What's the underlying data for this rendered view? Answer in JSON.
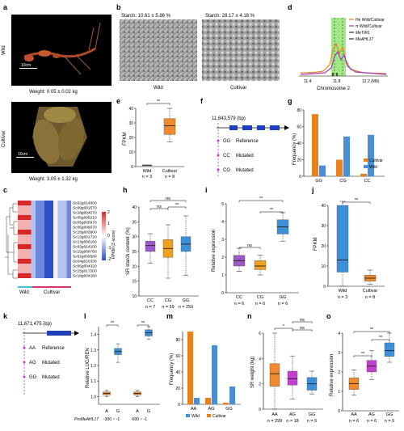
{
  "panels": {
    "a": {
      "letter": "a",
      "row_wild": "Wild",
      "row_cultivar": "Cultivar",
      "weight_wild": "Weight: 0.05 ± 0.02 kg",
      "weight_cultivar": "Weight: 3.05 ± 1.32 kg",
      "scale": "10cm"
    },
    "b": {
      "letter": "b",
      "starch_wild": "Starch: 10.61 ± 5.86 %",
      "starch_cultivar": "Starch: 28.17 ± 4.18 %",
      "label_wild": "Wild",
      "label_cultivar": "Cultivar"
    },
    "d": {
      "letter": "d",
      "legend": [
        "He Wild/Cultivar",
        "π Wild/Cultivar",
        "MeTIR1",
        "MeAHL17"
      ],
      "xticks": [
        "11.4",
        "11.8",
        "12.2 (Mb)"
      ],
      "xlabel": "Chromosome 2",
      "colors": {
        "he": "#e8821e",
        "pi": "#a43cc6",
        "shade": "#7fe05a"
      }
    },
    "e": {
      "letter": "e",
      "ylabel": "FPKM",
      "yticks": [
        "0",
        "10",
        "20",
        "30",
        "40"
      ],
      "groups": [
        "Wild",
        "Cultivar"
      ],
      "n": [
        "n = 3",
        "n = 8"
      ],
      "sig": "**"
    },
    "f": {
      "letter": "f",
      "position": "11,843,579 (bp)",
      "genotypes": [
        {
          "code": "GG",
          "desc": "Reference"
        },
        {
          "code": "CC",
          "desc": "Mutated"
        },
        {
          "code": "CG",
          "desc": "Mutated"
        }
      ]
    },
    "g": {
      "letter": "g",
      "ylabel": "Frequency (%)",
      "yticks": [
        "0",
        "20",
        "40",
        "60",
        "80"
      ],
      "legend": [
        "Cultivar",
        "Wild"
      ]
    },
    "c": {
      "letter": "c",
      "genes": [
        "Sc02g014000",
        "Sc09g001570",
        "Sc18g004070",
        "Sc05g005210",
        "Sc05g005970",
        "Sc05g006070",
        "Sc18g003900",
        "Sc13g001720",
        "Sc13g006160",
        "Sc02g014200",
        "Sc15g009760",
        "Sc02g009580",
        "Sc04g020330",
        "Sc05g004320",
        "Sc15g017200",
        "Sc18g004160"
      ],
      "legend_title": "FPKM (Z-score)",
      "legend_ticks": [
        "2",
        "1",
        "0",
        "-1",
        "-2"
      ],
      "groups": [
        "Wild",
        "Cultivar"
      ]
    },
    "h": {
      "letter": "h",
      "ylabel": "SR starch content (%)",
      "yticks": [
        "10",
        "15",
        "20",
        "25",
        "30",
        "35",
        "40"
      ],
      "sig": [
        "ns",
        "ns",
        "**"
      ]
    },
    "i": {
      "letter": "i",
      "ylabel": "Relative expression",
      "yticks": [
        "0",
        "1",
        "2",
        "3",
        "4",
        "5"
      ],
      "sig": [
        "**",
        "ns",
        "**"
      ]
    },
    "j": {
      "letter": "j",
      "ylabel": "FPKM",
      "yticks": [
        "0",
        "10",
        "20",
        "30",
        "40"
      ],
      "groups": [
        "Wild",
        "Cultivar"
      ],
      "n": [
        "n = 3",
        "n = 8"
      ],
      "sig": "**"
    },
    "k": {
      "letter": "k",
      "position": "11,671,475 (bp)",
      "genotypes": [
        {
          "code": "AA",
          "desc": "Reference"
        },
        {
          "code": "AG",
          "desc": "Mutated"
        },
        {
          "code": "GG",
          "desc": "Mutated"
        }
      ]
    },
    "l": {
      "letter": "l",
      "ylabel": "Relative LUC/REN",
      "yticks": [
        "1.0",
        "1.1",
        "1.2",
        "1.3",
        "1.4"
      ],
      "allele_labels": [
        "A",
        "G",
        "A",
        "G"
      ],
      "promoter": "ProMeAHL17",
      "ranges": [
        "-300 ~ -1",
        "-600 ~ -1"
      ],
      "sig": [
        "**",
        "**"
      ]
    },
    "m": {
      "letter": "m",
      "ylabel": "Frequency (%)",
      "yticks": [
        "0",
        "20",
        "40",
        "60",
        "80"
      ],
      "legend": [
        "Wild",
        "Cultivar"
      ]
    },
    "n": {
      "letter": "n",
      "ylabel": "SR weight (kg)",
      "yticks": [
        "0",
        "2",
        "4",
        "6"
      ],
      "sig": [
        "ns",
        "*",
        "ns"
      ]
    },
    "o": {
      "letter": "o",
      "ylabel": "Relative expression",
      "yticks": [
        "0",
        "1",
        "2",
        "3",
        "4"
      ],
      "sig": [
        "**",
        "**",
        "**"
      ]
    }
  },
  "chart_data": [
    {
      "panel": "e",
      "type": "box",
      "categories": [
        "Wild",
        "Cultivar"
      ],
      "n": [
        3,
        8
      ],
      "ylim": [
        0,
        40
      ],
      "boxes": [
        {
          "min": 1,
          "q1": 1,
          "median": 1,
          "q3": 1,
          "max": 1
        },
        {
          "min": 17,
          "q1": 22,
          "median": 28,
          "q3": 33,
          "max": 40
        }
      ]
    },
    {
      "panel": "g",
      "type": "bar",
      "categories": [
        "GG",
        "CG",
        "CC"
      ],
      "series": [
        {
          "name": "Cultivar",
          "values": [
            75,
            20,
            3
          ]
        },
        {
          "name": "Wild",
          "values": [
            13,
            48,
            50
          ]
        }
      ],
      "ylim": [
        0,
        80
      ]
    },
    {
      "panel": "h",
      "type": "box",
      "categories": [
        "CC",
        "CG",
        "GG"
      ],
      "n": [
        7,
        59,
        259
      ],
      "ylim": [
        10,
        40
      ],
      "boxes": [
        {
          "min": 21,
          "q1": 25,
          "median": 27,
          "q3": 28.5,
          "max": 31
        },
        {
          "min": 16,
          "q1": 23,
          "median": 26,
          "q3": 29,
          "max": 34
        },
        {
          "min": 17,
          "q1": 25,
          "median": 27.5,
          "q3": 30,
          "max": 37
        }
      ]
    },
    {
      "panel": "i",
      "type": "box",
      "categories": [
        "CC",
        "CG",
        "GG"
      ],
      "n": [
        6,
        6,
        6
      ],
      "ylim": [
        0,
        5
      ],
      "boxes": [
        {
          "min": 1.2,
          "q1": 1.5,
          "median": 1.8,
          "q3": 2.1,
          "max": 2.5
        },
        {
          "min": 1.0,
          "q1": 1.3,
          "median": 1.5,
          "q3": 1.8,
          "max": 2.1
        },
        {
          "min": 2.9,
          "q1": 3.3,
          "median": 3.7,
          "q3": 4.1,
          "max": 4.5
        }
      ]
    },
    {
      "panel": "j",
      "type": "box",
      "categories": [
        "Wild",
        "Cultivar"
      ],
      "n": [
        3,
        8
      ],
      "ylim": [
        0,
        40
      ],
      "boxes": [
        {
          "min": 0,
          "q1": 7,
          "median": 13,
          "q3": 40,
          "max": 42
        },
        {
          "min": 1,
          "q1": 2.5,
          "median": 4,
          "q3": 5.5,
          "max": 8
        }
      ]
    },
    {
      "panel": "l",
      "type": "box",
      "categories": [
        "A (-300~-1)",
        "G (-300~-1)",
        "A (-600~-1)",
        "G (-600~-1)"
      ],
      "ylim": [
        0.95,
        1.45
      ],
      "boxes": [
        {
          "min": 1.0,
          "q1": 1.01,
          "median": 1.02,
          "q3": 1.03,
          "max": 1.04
        },
        {
          "min": 1.22,
          "q1": 1.27,
          "median": 1.29,
          "q3": 1.31,
          "max": 1.34
        },
        {
          "min": 1.0,
          "q1": 1.01,
          "median": 1.02,
          "q3": 1.03,
          "max": 1.04
        },
        {
          "min": 1.37,
          "q1": 1.39,
          "median": 1.41,
          "q3": 1.43,
          "max": 1.45
        }
      ]
    },
    {
      "panel": "m",
      "type": "bar",
      "categories": [
        "AA",
        "AG",
        "GG"
      ],
      "series": [
        {
          "name": "Wild",
          "values": [
            8,
            73,
            22
          ]
        },
        {
          "name": "Cultivar",
          "values": [
            90,
            8,
            2
          ]
        }
      ],
      "ylim": [
        0,
        90
      ]
    },
    {
      "panel": "n",
      "type": "box",
      "categories": [
        "AA",
        "AG",
        "GG"
      ],
      "n": [
        299,
        18,
        5
      ],
      "ylim": [
        0,
        6
      ],
      "boxes": [
        {
          "min": 0,
          "q1": 1.8,
          "median": 2.8,
          "q3": 3.6,
          "max": 6
        },
        {
          "min": 0.8,
          "q1": 1.9,
          "median": 2.4,
          "q3": 3.0,
          "max": 4.2
        },
        {
          "min": 1.2,
          "q1": 1.5,
          "median": 2.0,
          "q3": 2.5,
          "max": 3.0
        }
      ]
    },
    {
      "panel": "o",
      "type": "box",
      "categories": [
        "AA",
        "AG",
        "GG"
      ],
      "n": [
        6,
        6,
        5
      ],
      "ylim": [
        0,
        4
      ],
      "boxes": [
        {
          "min": 0.8,
          "q1": 1.1,
          "median": 1.4,
          "q3": 1.7,
          "max": 2.1
        },
        {
          "min": 1.6,
          "q1": 2.0,
          "median": 2.3,
          "q3": 2.6,
          "max": 3.1
        },
        {
          "min": 2.5,
          "q1": 2.8,
          "median": 3.1,
          "q3": 3.5,
          "max": 4.0
        }
      ]
    }
  ]
}
